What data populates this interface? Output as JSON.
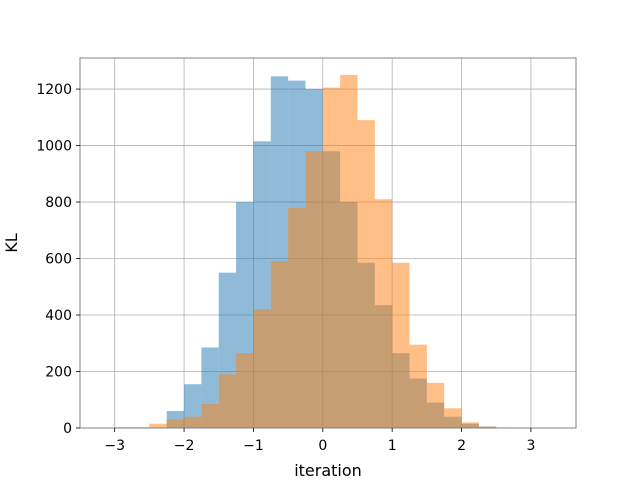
{
  "chart_data": {
    "type": "bar",
    "xlabel": "iteration",
    "ylabel": "KL",
    "xlim": [
      -3.5,
      3.65
    ],
    "ylim": [
      0,
      1310
    ],
    "grid": true,
    "x_ticks": [
      -3,
      -2,
      -1,
      0,
      1,
      2,
      3
    ],
    "x_tick_labels": [
      "−3",
      "−2",
      "−1",
      "0",
      "1",
      "2",
      "3"
    ],
    "y_ticks": [
      0,
      200,
      400,
      600,
      800,
      1000,
      1200
    ],
    "y_tick_labels": [
      "0",
      "200",
      "400",
      "600",
      "800",
      "1000",
      "1200"
    ],
    "series": [
      {
        "color": "#1f77b4",
        "opacity": 0.5,
        "bins": [
          -2.25,
          -2.0,
          -1.75,
          -1.5,
          -1.25,
          -1.0,
          -0.75,
          -0.5,
          -0.25,
          0.0,
          0.25,
          0.5,
          0.75,
          1.0,
          1.25,
          1.5,
          1.75,
          2.0,
          2.25,
          2.5,
          2.75
        ],
        "values": [
          60,
          155,
          285,
          550,
          800,
          1015,
          1245,
          1230,
          1200,
          980,
          800,
          585,
          435,
          265,
          175,
          90,
          40,
          15,
          5,
          2
        ]
      },
      {
        "color": "#ff7f0e",
        "opacity": 0.5,
        "bins": [
          -3.0,
          -2.5,
          -2.25,
          -2.0,
          -1.75,
          -1.5,
          -1.25,
          -1.0,
          -0.75,
          -0.5,
          -0.25,
          0.0,
          0.25,
          0.5,
          0.75,
          1.0,
          1.25,
          1.5,
          1.75,
          2.0,
          2.25,
          2.5
        ],
        "values": [
          3,
          15,
          30,
          40,
          85,
          190,
          265,
          420,
          590,
          780,
          980,
          1205,
          1250,
          1090,
          810,
          585,
          295,
          160,
          70,
          20,
          5
        ]
      }
    ]
  }
}
